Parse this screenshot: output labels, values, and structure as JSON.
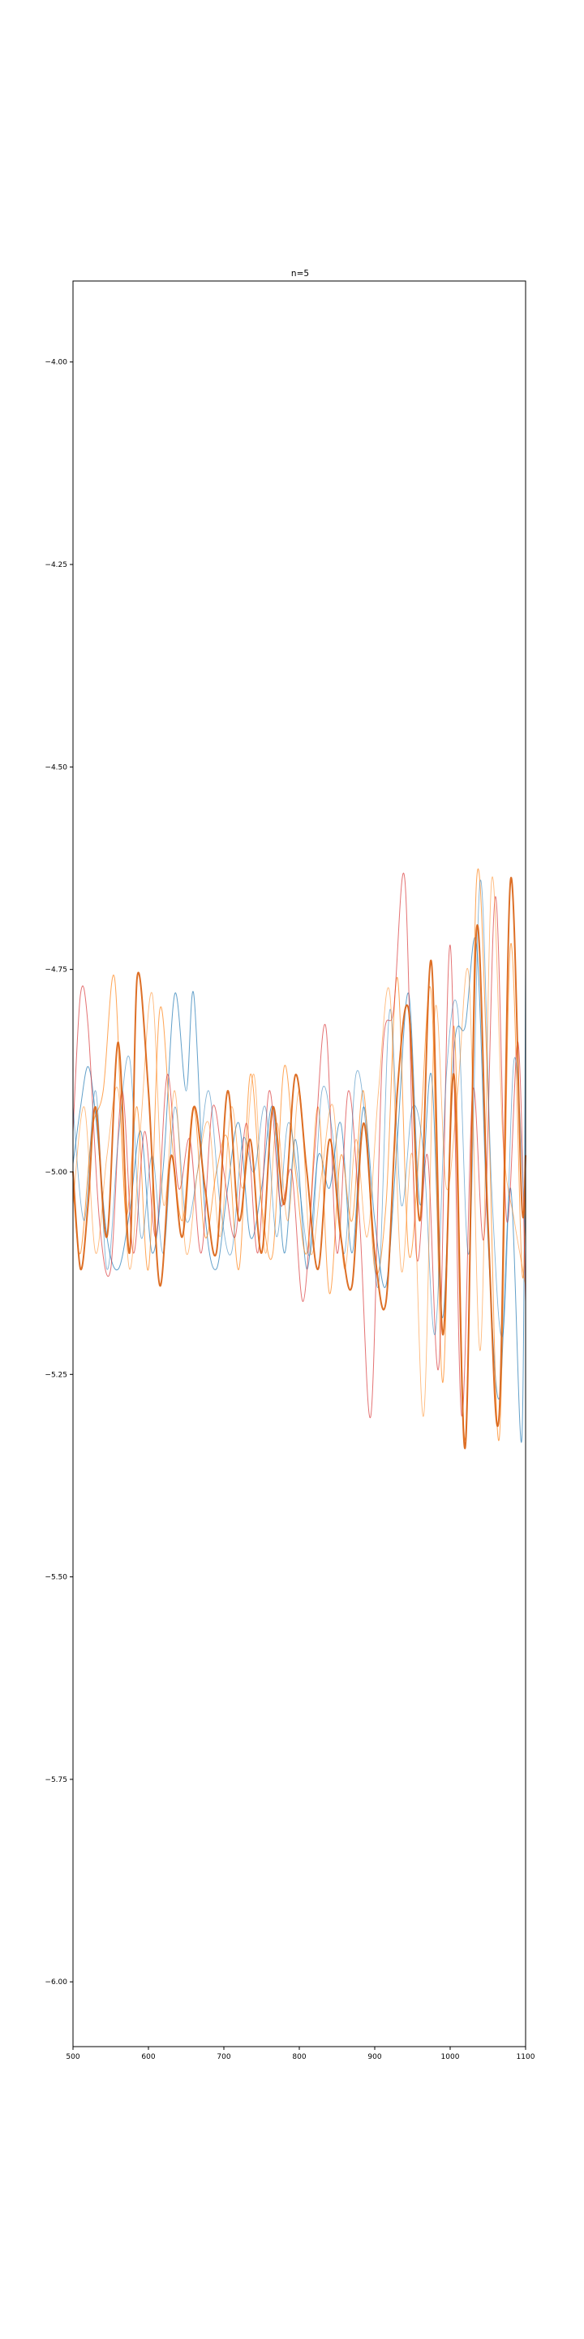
{
  "chart_data": {
    "type": "line",
    "title": "n=5",
    "xlabel": "",
    "ylabel": "",
    "xlim": [
      500,
      1100
    ],
    "ylim": [
      -6.08,
      -3.9
    ],
    "x_ticks": [
      500,
      600,
      700,
      800,
      900,
      1000,
      1100
    ],
    "x_tick_labels": [
      "500",
      "600",
      "700",
      "800",
      "900",
      "1000",
      "1100"
    ],
    "y_ticks": [
      -4.0,
      -4.25,
      -4.5,
      -4.75,
      -5.0,
      -5.25,
      -5.5,
      -5.75,
      -6.0
    ],
    "y_tick_labels": [
      "−4.00",
      "−4.25",
      "−4.50",
      "−4.75",
      "−5.00",
      "−5.25",
      "−5.50",
      "−5.75",
      "−6.00"
    ],
    "grid": false,
    "legend": "none",
    "series": [
      {
        "color": "#1f77b4",
        "width": 1.0,
        "alpha": 0.7,
        "x": [
          500,
          510,
          520,
          530,
          545,
          560,
          575,
          590,
          605,
          620,
          635,
          650,
          660,
          675,
          690,
          705,
          720,
          735,
          750,
          765,
          780,
          795,
          810,
          825,
          840,
          855,
          870,
          885,
          900,
          915,
          930,
          945,
          960,
          975,
          990,
          1005,
          1020,
          1035,
          1050,
          1065,
          1080,
          1095,
          1100
        ],
        "y": [
          -4.99,
          -4.92,
          -4.87,
          -4.93,
          -5.08,
          -5.12,
          -5.05,
          -4.95,
          -5.1,
          -4.99,
          -4.78,
          -4.9,
          -4.78,
          -5.05,
          -5.12,
          -5.02,
          -4.94,
          -5.08,
          -5.02,
          -4.92,
          -5.1,
          -4.96,
          -5.12,
          -4.98,
          -5.02,
          -4.94,
          -5.1,
          -4.92,
          -5.06,
          -5.14,
          -4.96,
          -4.78,
          -5.04,
          -4.88,
          -5.18,
          -4.85,
          -4.82,
          -4.72,
          -5.08,
          -5.28,
          -5.02,
          -5.33,
          -4.75
        ]
      },
      {
        "color": "#ff7f0e",
        "width": 1.0,
        "alpha": 0.7,
        "x": [
          500,
          510,
          525,
          540,
          555,
          570,
          585,
          600,
          615,
          630,
          645,
          660,
          675,
          690,
          705,
          720,
          735,
          750,
          765,
          780,
          795,
          810,
          825,
          840,
          855,
          870,
          885,
          900,
          915,
          930,
          945,
          960,
          975,
          990,
          1005,
          1020,
          1035,
          1050,
          1065,
          1080,
          1095,
          1100
        ],
        "y": [
          -5.02,
          -5.1,
          -4.95,
          -4.9,
          -4.76,
          -5.05,
          -4.92,
          -5.12,
          -4.8,
          -4.95,
          -5.06,
          -4.92,
          -5.08,
          -5.0,
          -4.96,
          -5.12,
          -4.88,
          -5.04,
          -5.1,
          -4.87,
          -5.0,
          -5.1,
          -4.92,
          -5.15,
          -4.98,
          -5.06,
          -4.9,
          -5.12,
          -5.04,
          -4.76,
          -5.1,
          -4.96,
          -4.78,
          -5.26,
          -4.82,
          -5.33,
          -4.64,
          -4.9,
          -5.33,
          -4.72,
          -5.12,
          -5.02
        ]
      },
      {
        "color": "#d62728",
        "width": 1.0,
        "alpha": 0.65,
        "x": [
          500,
          510,
          520,
          535,
          550,
          565,
          580,
          595,
          610,
          625,
          640,
          655,
          670,
          685,
          700,
          715,
          730,
          745,
          760,
          775,
          790,
          805,
          820,
          835,
          850,
          865,
          880,
          895,
          910,
          925,
          940,
          955,
          970,
          985,
          1000,
          1015,
          1030,
          1045,
          1060,
          1075,
          1090,
          1100
        ],
        "y": [
          -4.95,
          -4.78,
          -4.82,
          -5.06,
          -5.12,
          -4.9,
          -5.1,
          -4.95,
          -5.08,
          -4.88,
          -5.02,
          -4.96,
          -5.1,
          -4.92,
          -5.0,
          -5.08,
          -4.94,
          -5.1,
          -4.9,
          -5.04,
          -5.0,
          -5.16,
          -4.98,
          -4.82,
          -5.1,
          -4.9,
          -5.06,
          -5.3,
          -4.86,
          -4.8,
          -4.64,
          -5.1,
          -4.98,
          -5.24,
          -4.72,
          -5.3,
          -4.9,
          -5.08,
          -4.66,
          -5.06,
          -4.84,
          -5.16
        ]
      },
      {
        "color": "#1f77b4",
        "width": 0.9,
        "alpha": 0.55,
        "x": [
          500,
          515,
          530,
          545,
          560,
          575,
          590,
          605,
          620,
          635,
          650,
          665,
          680,
          695,
          710,
          725,
          740,
          755,
          770,
          785,
          800,
          815,
          830,
          845,
          860,
          875,
          890,
          905,
          920,
          935,
          950,
          965,
          980,
          995,
          1010,
          1025,
          1040,
          1055,
          1070,
          1085,
          1100
        ],
        "y": [
          -4.92,
          -5.06,
          -4.9,
          -5.12,
          -4.96,
          -4.86,
          -5.08,
          -4.98,
          -5.1,
          -4.92,
          -5.06,
          -5.0,
          -4.9,
          -5.04,
          -5.1,
          -4.96,
          -5.0,
          -4.92,
          -5.08,
          -4.94,
          -5.02,
          -5.1,
          -4.9,
          -4.96,
          -5.1,
          -4.88,
          -4.96,
          -5.14,
          -4.8,
          -5.04,
          -4.92,
          -4.98,
          -5.2,
          -4.88,
          -4.8,
          -5.1,
          -4.64,
          -5.02,
          -5.2,
          -4.86,
          -5.08
        ]
      },
      {
        "color": "#ff7f0e",
        "width": 0.9,
        "alpha": 0.55,
        "x": [
          500,
          515,
          530,
          545,
          560,
          575,
          590,
          605,
          620,
          635,
          650,
          665,
          680,
          695,
          710,
          725,
          740,
          755,
          770,
          785,
          800,
          815,
          830,
          845,
          860,
          875,
          890,
          905,
          920,
          935,
          950,
          965,
          980,
          995,
          1010,
          1025,
          1040,
          1055,
          1070,
          1085,
          1100
        ],
        "y": [
          -5.04,
          -4.92,
          -5.1,
          -4.98,
          -4.9,
          -5.12,
          -4.94,
          -4.78,
          -5.04,
          -4.9,
          -5.1,
          -5.0,
          -4.94,
          -5.08,
          -4.92,
          -5.02,
          -4.88,
          -5.1,
          -4.94,
          -5.06,
          -4.9,
          -5.1,
          -5.0,
          -4.92,
          -5.12,
          -4.96,
          -5.08,
          -4.9,
          -4.78,
          -5.12,
          -4.98,
          -5.3,
          -4.8,
          -5.02,
          -4.9,
          -4.76,
          -5.22,
          -4.64,
          -4.96,
          -5.06,
          -5.14
        ]
      },
      {
        "color": "#d95f0e",
        "width": 2.0,
        "alpha": 0.9,
        "x": [
          500,
          510,
          520,
          530,
          545,
          560,
          575,
          585,
          600,
          615,
          630,
          645,
          660,
          675,
          690,
          705,
          720,
          735,
          750,
          765,
          780,
          795,
          810,
          825,
          840,
          855,
          870,
          885,
          900,
          915,
          930,
          945,
          960,
          975,
          990,
          1005,
          1020,
          1035,
          1050,
          1065,
          1080,
          1095,
          1100
        ],
        "y": [
          -5.0,
          -5.12,
          -5.04,
          -4.92,
          -5.08,
          -4.84,
          -5.1,
          -4.76,
          -4.9,
          -5.14,
          -4.98,
          -5.08,
          -4.92,
          -5.02,
          -5.1,
          -4.9,
          -5.06,
          -4.96,
          -5.1,
          -4.92,
          -5.04,
          -4.88,
          -5.0,
          -5.12,
          -4.96,
          -5.08,
          -5.14,
          -4.94,
          -5.1,
          -5.16,
          -4.9,
          -4.8,
          -5.06,
          -4.74,
          -5.2,
          -4.88,
          -5.34,
          -4.7,
          -5.06,
          -5.3,
          -4.64,
          -5.04,
          -4.98
        ]
      }
    ]
  }
}
